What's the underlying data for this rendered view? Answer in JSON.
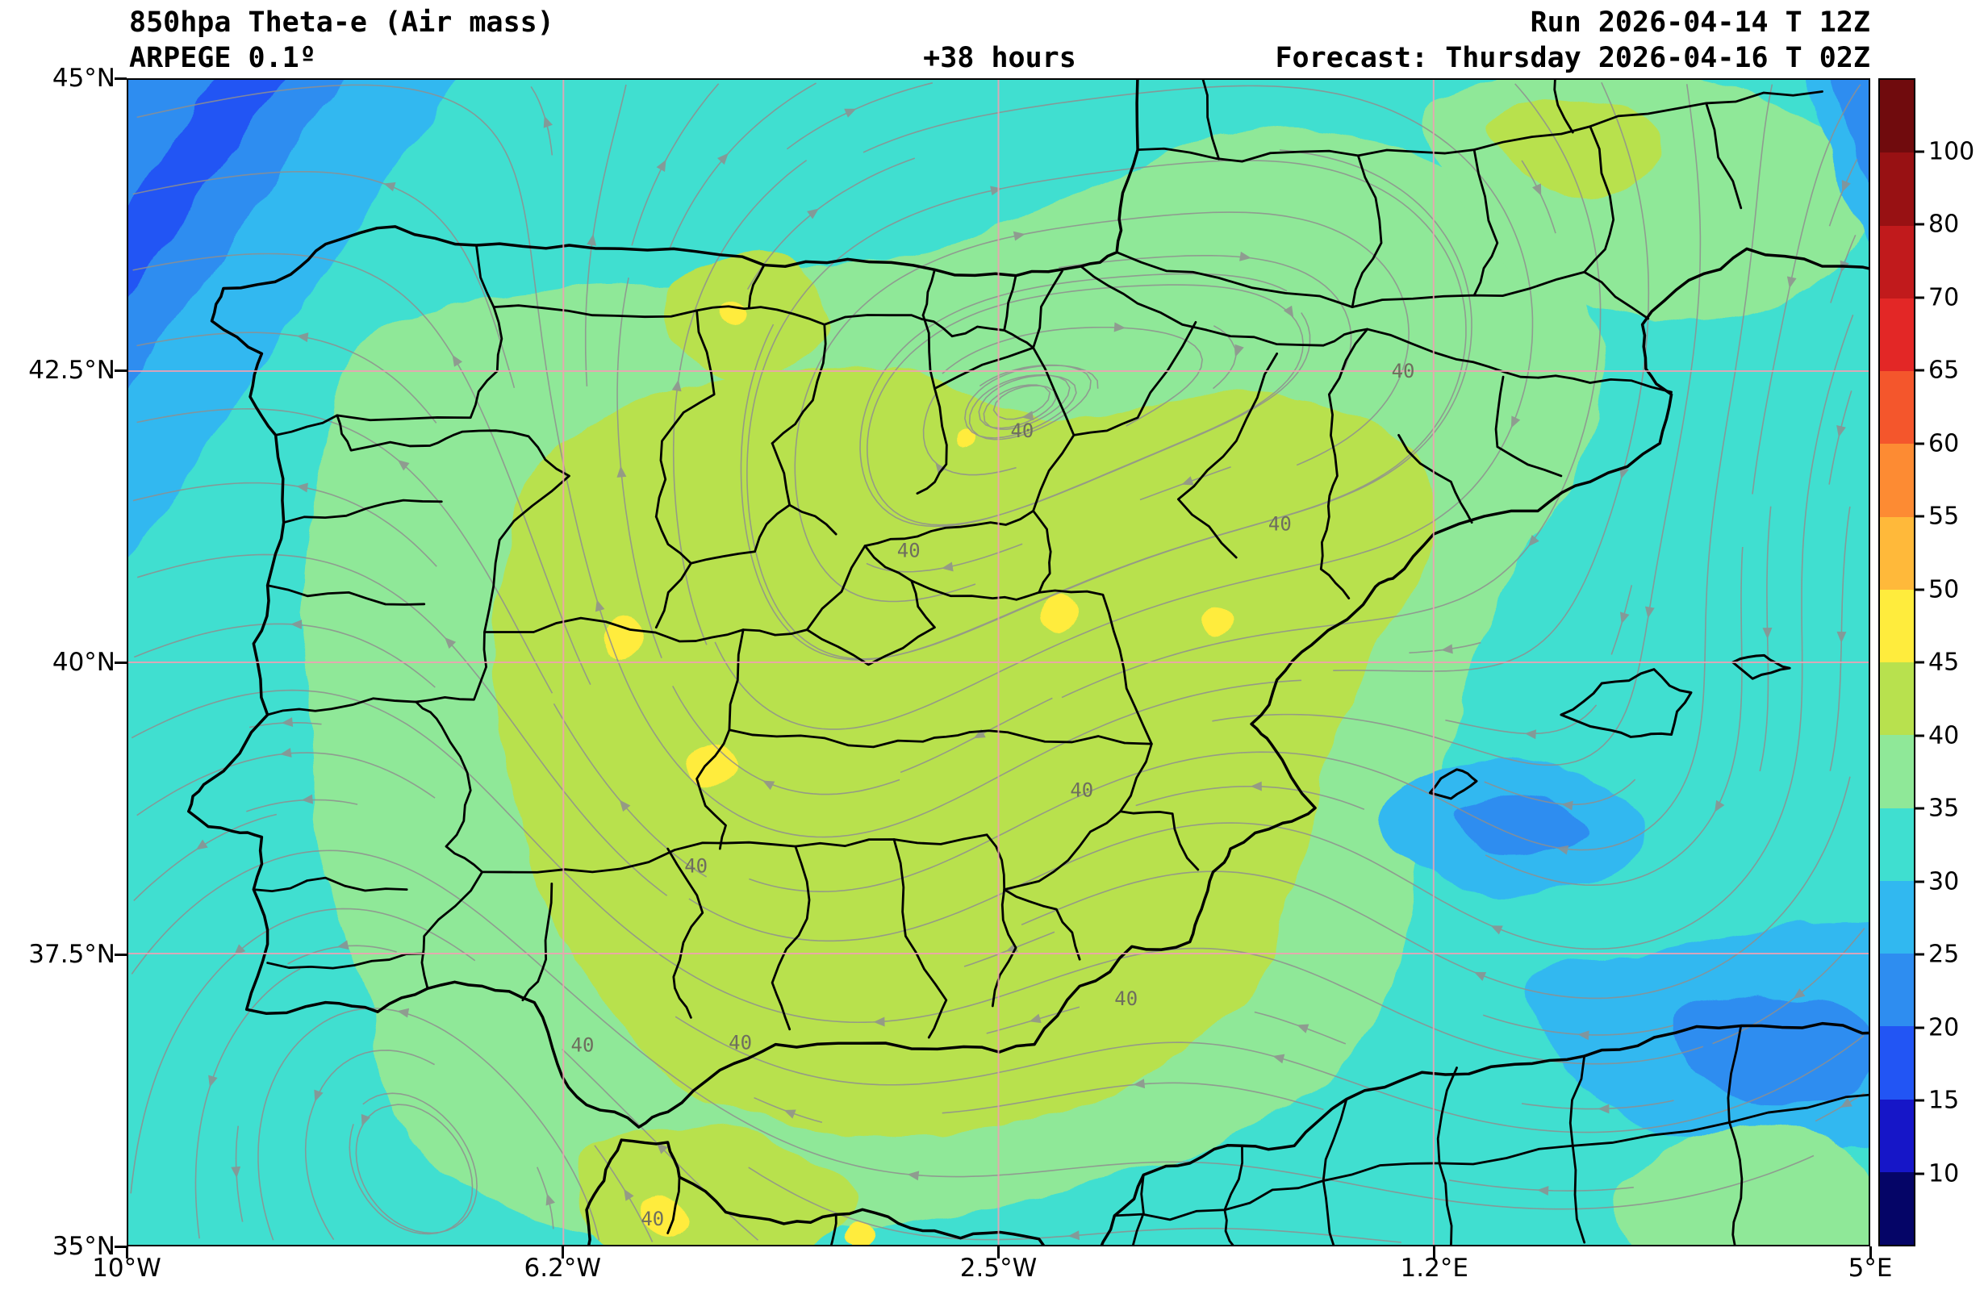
{
  "header": {
    "title": "850hpa Theta-e (Air mass)",
    "model": "ARPEGE 0.1º",
    "lead_time": "+38 hours",
    "run": "Run 2026-04-14 T 12Z",
    "valid": "Forecast: Thursday 2026-04-16 T 02Z"
  },
  "axes": {
    "y_tick_labels": [
      "45°N",
      "42.5°N",
      "40°N",
      "37.5°N",
      "35°N"
    ],
    "x_tick_labels": [
      "10°W",
      "6.2°W",
      "2.5°W",
      "1.2°E",
      "5°E"
    ]
  },
  "colorbar": {
    "levels": [
      10,
      15,
      20,
      25,
      30,
      35,
      40,
      45,
      50,
      55,
      60,
      65,
      70,
      80,
      100
    ],
    "tick_labels": [
      "10",
      "15",
      "20",
      "25",
      "30",
      "35",
      "40",
      "45",
      "50",
      "55",
      "60",
      "65",
      "70",
      "80",
      "100"
    ],
    "colors_bottom_to_top": [
      "#050567",
      "#1616c8",
      "#2255f4",
      "#2e8df0",
      "#31b8f0",
      "#3fdfd0",
      "#8fe898",
      "#b8e14e",
      "#ffec3d",
      "#ffb93a",
      "#fd8b33",
      "#f4562c",
      "#e32726",
      "#c11a1c",
      "#981113",
      "#700b0d"
    ]
  },
  "map": {
    "contour_label_text": "40",
    "gridline_color": "#f2a0b4",
    "boundary_color": "#000000",
    "streamline_color": "#8f8f8f"
  },
  "chart_data": {
    "type": "heatmap",
    "title": "850hpa Theta-e (Air mass)",
    "model": "ARPEGE 0.1º",
    "run": "2026-04-14 T 12Z",
    "valid": "Thursday 2026-04-16 T 02Z",
    "lead_hours": 38,
    "x_ticks": [
      "10°W",
      "6.2°W",
      "2.5°W",
      "1.2°E",
      "5°E"
    ],
    "y_ticks": [
      "45°N",
      "42.5°N",
      "40°N",
      "37.5°N",
      "35°N"
    ],
    "colorbar_levels": [
      10,
      15,
      20,
      25,
      30,
      35,
      40,
      45,
      50,
      55,
      60,
      65,
      70,
      80,
      100
    ],
    "field_summary": {
      "atlantic_northwest": "20-30",
      "open_sea_background": "30-35",
      "iberia_coastal_ring": "35-40",
      "iberia_interior": "40-45",
      "local_maxima_spots": "45-50",
      "mediterranean_patches": "25-30",
      "labeled_contour": 40
    },
    "legend_position": "right",
    "grid": true
  }
}
